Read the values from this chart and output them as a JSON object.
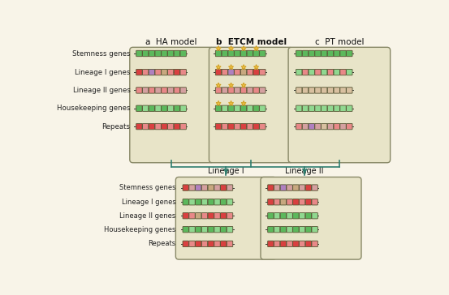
{
  "figure_bg": "#f8f4e8",
  "title_a": "a  HA model",
  "title_b": "b  ETCM model",
  "title_c": "c  PT model",
  "row_labels_top": [
    "Stemness genes",
    "Lineage I genes",
    "Lineage II genes",
    "Housekeeping genes",
    "Repeats"
  ],
  "row_labels_bottom": [
    "Stemness genes",
    "Lineage I genes",
    "Lineage II genes",
    "Housekeeping genes",
    "Repeats"
  ],
  "lineage1_label": "Lineage I",
  "lineage2_label": "Lineage II",
  "GREEN": "#5cb85c",
  "GREEN_L": "#90d890",
  "RED": "#d94040",
  "RED_L": "#e88888",
  "PINK": "#d4a0a0",
  "PURPLE": "#b080c0",
  "TAN": "#c8a880",
  "TAN_L": "#d8c0a0",
  "GRAY": "#a0a0a0",
  "star_color": "#f0c040",
  "box_bg": "#e8e4c8",
  "arrow_color": "#2e7d6e",
  "panel_edge": "#888866"
}
